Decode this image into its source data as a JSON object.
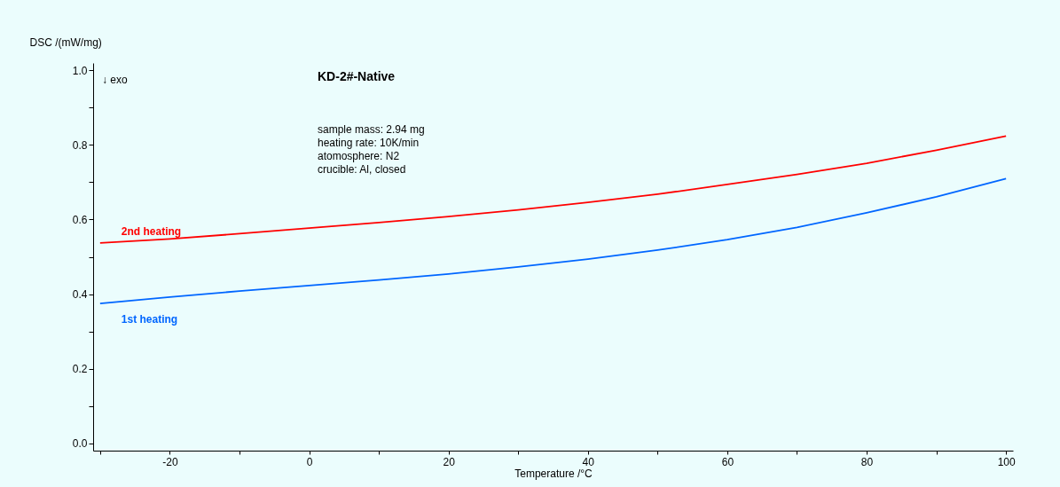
{
  "chart_data": {
    "type": "line",
    "title": "KD-2#-Native",
    "xlabel": "Temperature /°C",
    "ylabel": "DSC /(mW/mg)",
    "annotations": [
      "↓ exo",
      "sample mass: 2.94 mg",
      "heating rate: 10K/min",
      "atomosphere: N2",
      "crucible: Al, closed"
    ],
    "x": [
      -30,
      -20,
      -10,
      0,
      10,
      20,
      30,
      40,
      50,
      60,
      70,
      80,
      90,
      100
    ],
    "series": [
      {
        "name": "2nd heating",
        "color": "#ff0000",
        "values": [
          0.537,
          0.548,
          0.562,
          0.577,
          0.592,
          0.608,
          0.626,
          0.646,
          0.668,
          0.694,
          0.721,
          0.751,
          0.786,
          0.824
        ]
      },
      {
        "name": "1st heating",
        "color": "#0066ff",
        "values": [
          0.375,
          0.392,
          0.408,
          0.423,
          0.438,
          0.454,
          0.473,
          0.494,
          0.518,
          0.546,
          0.579,
          0.618,
          0.661,
          0.71
        ]
      }
    ],
    "xlim": [
      -31,
      101
    ],
    "ylim": [
      -0.02,
      1.02
    ],
    "xticks": [
      {
        "value": -30,
        "label": null
      },
      -20,
      {
        "value": -10,
        "label": null
      },
      0,
      {
        "value": 10,
        "label": null
      },
      20,
      {
        "value": 30,
        "label": null
      },
      40,
      {
        "value": 50,
        "label": null
      },
      60,
      {
        "value": 70,
        "label": null
      },
      80,
      {
        "value": 90,
        "label": null
      },
      100
    ],
    "yticks": [
      {
        "value": 0.0,
        "label": "0.0"
      },
      {
        "value": 0.1,
        "label": null
      },
      0.2,
      {
        "value": 0.3,
        "label": null
      },
      0.4,
      {
        "value": 0.5,
        "label": null
      },
      0.6,
      {
        "value": 0.7,
        "label": null
      },
      0.8,
      {
        "value": 0.9,
        "label": null
      },
      {
        "value": 1.0,
        "label": "1.0"
      }
    ],
    "grid": false,
    "legend": false,
    "marker": "none",
    "line_style": "solid"
  }
}
